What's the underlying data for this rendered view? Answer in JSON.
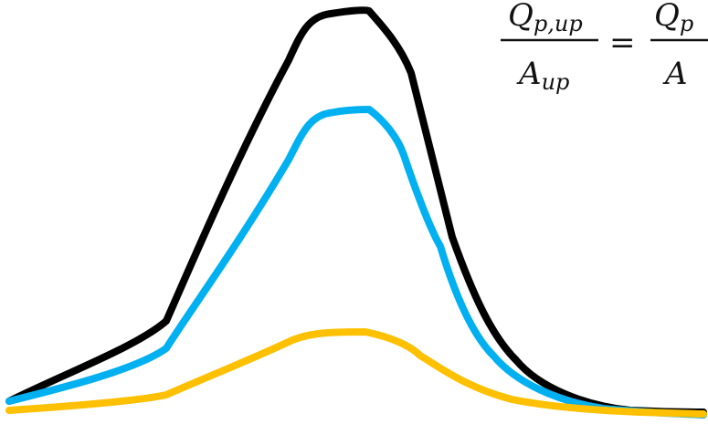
{
  "equation": {
    "lhs_numerator": "Q",
    "lhs_numerator_sub": "p,up",
    "lhs_denominator": "A",
    "lhs_denominator_sub": "up",
    "equals": "=",
    "rhs_numerator": "Q",
    "rhs_numerator_sub": "p",
    "rhs_denominator": "A"
  },
  "curves": [
    {
      "id": "black-curve",
      "color": "#000000"
    },
    {
      "id": "blue-curve",
      "color": "#00b0f0"
    },
    {
      "id": "orange-curve",
      "color": "#ffc000"
    }
  ]
}
